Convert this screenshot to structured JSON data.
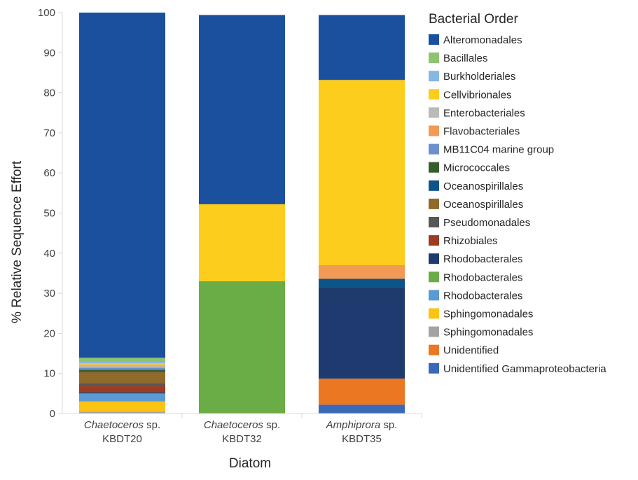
{
  "chart_data": {
    "type": "bar",
    "stacked": true,
    "title": "",
    "xlabel": "Diatom",
    "ylabel": "% Relative Sequence Effort",
    "ylim": [
      0,
      100
    ],
    "yticks": [
      0,
      10,
      20,
      30,
      40,
      50,
      60,
      70,
      80,
      90,
      100
    ],
    "grid": false,
    "legend_position": "right",
    "legend_title": "Bacterial Order",
    "categories": [
      {
        "italic": "Chaetoceros",
        "rest": " sp.",
        "code": "KBDT20"
      },
      {
        "italic": "Chaetoceros",
        "rest": " sp.",
        "code": "KBDT32"
      },
      {
        "italic": "Amphiprora",
        "rest": " sp.",
        "code": "KBDT35"
      }
    ],
    "series": [
      {
        "name": "Unidentified Gammaproteobacteria",
        "color": "#3a69b8",
        "values": [
          0.0,
          0.0,
          2.2
        ]
      },
      {
        "name": "Unidentified",
        "color": "#eb7722",
        "values": [
          0.0,
          0.0,
          6.5
        ]
      },
      {
        "name": "Sphingomonadales",
        "color": "#a3a3a3",
        "values": [
          0.5,
          0.0,
          0.0
        ]
      },
      {
        "name": "Sphingomonadales",
        "color": "#fbc314",
        "values": [
          2.5,
          0.0,
          0.0
        ]
      },
      {
        "name": "Rhodobacterales",
        "color": "#5a9bd4",
        "values": [
          2.0,
          0.0,
          0.0
        ]
      },
      {
        "name": "Rhodobacterales",
        "color": "#6aac46",
        "values": [
          0.0,
          33.0,
          0.0
        ]
      },
      {
        "name": "Rhodobacterales",
        "color": "#1e3a6e",
        "values": [
          0.3,
          0.0,
          22.7
        ]
      },
      {
        "name": "Rhizobiales",
        "color": "#9c3c22",
        "values": [
          1.5,
          0.0,
          0.0
        ]
      },
      {
        "name": "Pseudomonadales",
        "color": "#575757",
        "values": [
          0.7,
          0.0,
          0.0
        ]
      },
      {
        "name": "Oceanospirillales",
        "color": "#8f6a2a",
        "values": [
          2.8,
          0.0,
          0.0
        ]
      },
      {
        "name": "Oceanospirillales",
        "color": "#0d5488",
        "values": [
          0.3,
          0.0,
          2.2
        ]
      },
      {
        "name": "Micrococcales",
        "color": "#365e2c",
        "values": [
          0.3,
          0.0,
          0.0
        ]
      },
      {
        "name": "MB11C04 marine group",
        "color": "#6f8fcf",
        "values": [
          0.5,
          0.0,
          0.0
        ]
      },
      {
        "name": "Flavobacteriales",
        "color": "#f29a55",
        "values": [
          0.3,
          0.0,
          3.4
        ]
      },
      {
        "name": "Enterobacteriales",
        "color": "#bababa",
        "values": [
          0.5,
          0.0,
          0.0
        ]
      },
      {
        "name": "Cellvibrionales",
        "color": "#fccd1c",
        "values": [
          0.3,
          19.2,
          46.2
        ]
      },
      {
        "name": "Burkholderiales",
        "color": "#86b6e2",
        "values": [
          0.4,
          0.0,
          0.0
        ]
      },
      {
        "name": "Bacillales",
        "color": "#8ec36f",
        "values": [
          1.0,
          0.0,
          0.0
        ]
      },
      {
        "name": "Alteromonadales",
        "color": "#1b509e",
        "values": [
          86.1,
          47.2,
          16.2
        ]
      }
    ],
    "legend_order": [
      "Alteromonadales",
      "Bacillales",
      "Burkholderiales",
      "Cellvibrionales",
      "Enterobacteriales",
      "Flavobacteriales",
      "MB11C04 marine group",
      "Micrococcales",
      "Oceanospirillales",
      "Oceanospirillales",
      "Pseudomonadales",
      "Rhizobiales",
      "Rhodobacterales",
      "Rhodobacterales",
      "Rhodobacterales",
      "Sphingomonadales",
      "Sphingomonadales",
      "Unidentified",
      "Unidentified Gammaproteobacteria"
    ],
    "legend_colors": [
      "#1b509e",
      "#8ec36f",
      "#86b6e2",
      "#fccd1c",
      "#bababa",
      "#f29a55",
      "#6f8fcf",
      "#365e2c",
      "#0d5488",
      "#8f6a2a",
      "#575757",
      "#9c3c22",
      "#1e3a6e",
      "#6aac46",
      "#5a9bd4",
      "#fbc314",
      "#a3a3a3",
      "#eb7722",
      "#3a69b8"
    ]
  }
}
